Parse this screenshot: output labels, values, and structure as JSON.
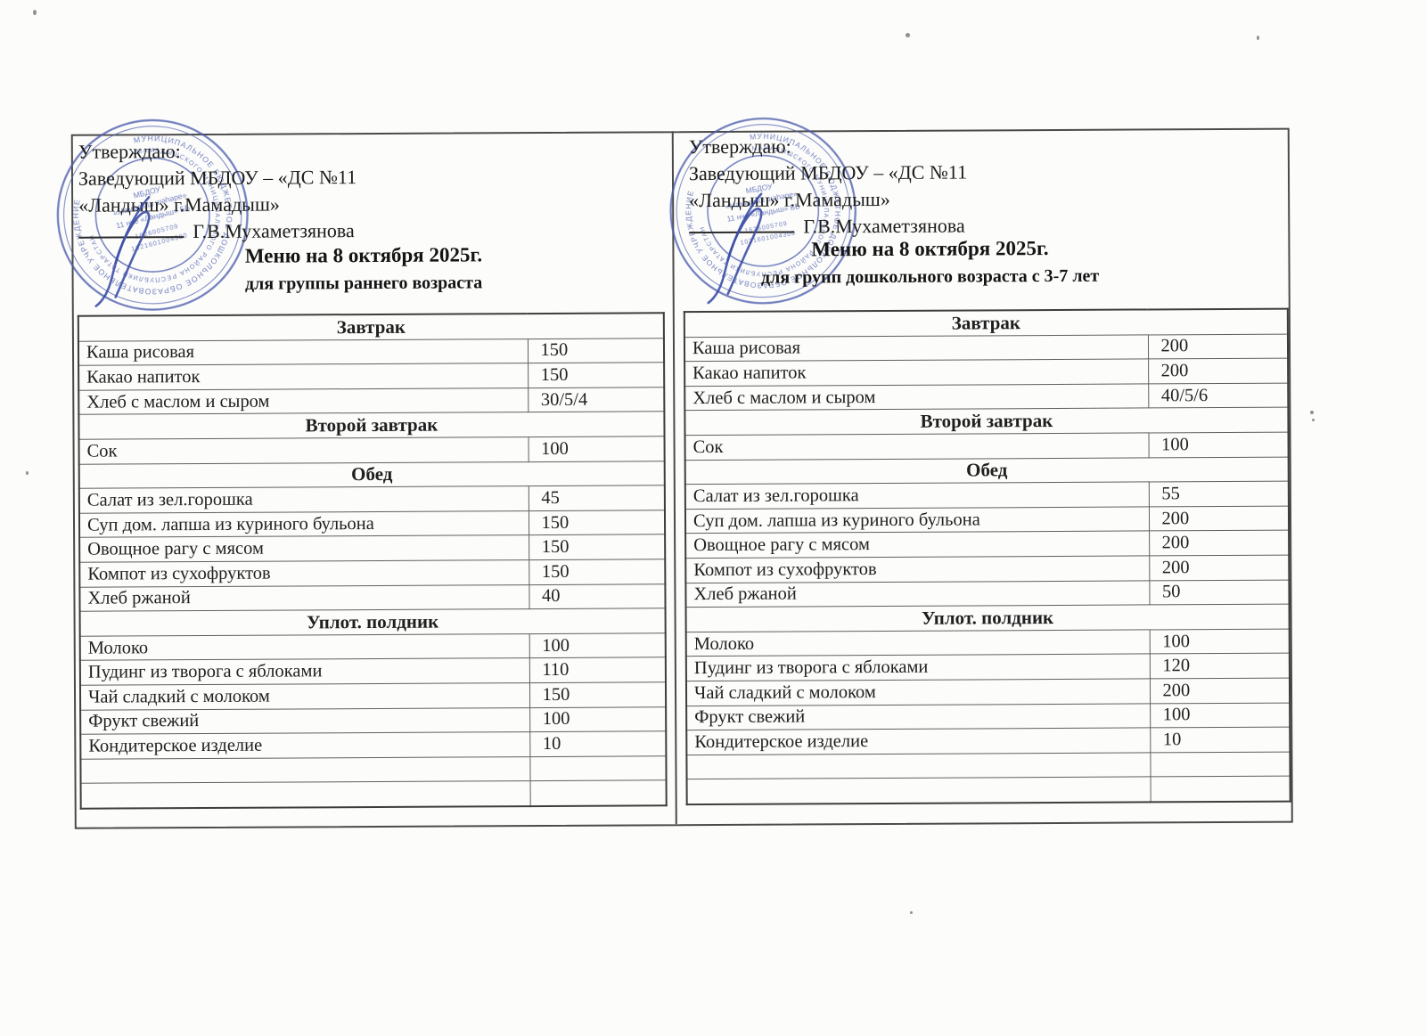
{
  "colors": {
    "stamp_blue": "#4d5ead",
    "signature_blue": "#3d4fa6",
    "ink": "#1e1e1e"
  },
  "approval": {
    "line1": "Утверждаю:",
    "line2": "Заведующий МБДОУ – «ДС №11",
    "line3": "«Ландыш» г.Мамадыш»",
    "signer": "Г.В.Мухаметзянова"
  },
  "left_menu": {
    "title": "Меню на 8 октября 2025г.",
    "subtitle": "для группы раннего возраста",
    "trailing_empty_rows": 2,
    "sections": [
      {
        "header": "Завтрак",
        "items": [
          {
            "dish": "Каша рисовая",
            "qty": "150"
          },
          {
            "dish": "Какао напиток",
            "qty": "150"
          },
          {
            "dish": "Хлеб с маслом и сыром",
            "qty": "30/5/4"
          }
        ]
      },
      {
        "header": "Второй завтрак",
        "items": [
          {
            "dish": "Сок",
            "qty": "100"
          }
        ]
      },
      {
        "header": "Обед",
        "items": [
          {
            "dish": "Салат из зел.горошка",
            "qty": "45"
          },
          {
            "dish": "Суп дом. лапша из куриного бульона",
            "qty": "150"
          },
          {
            "dish": "Овощное рагу с мясом",
            "qty": "150"
          },
          {
            "dish": "Компот из сухофруктов",
            "qty": "150"
          },
          {
            "dish": "Хлеб ржаной",
            "qty": "40"
          }
        ]
      },
      {
        "header": "Уплот. полдник",
        "items": [
          {
            "dish": "Молоко",
            "qty": "100"
          },
          {
            "dish": "Пудинг из творога с яблоками",
            "qty": "110"
          },
          {
            "dish": "Чай сладкий с молоком",
            "qty": "150"
          },
          {
            "dish": "Фрукт свежий",
            "qty": "100"
          },
          {
            "dish": "Кондитерское изделие",
            "qty": "10"
          }
        ]
      }
    ]
  },
  "right_menu": {
    "title": "Меню на 8 октября 2025г.",
    "subtitle": "для групп дошкольного возраста с 3-7 лет",
    "trailing_empty_rows": 2,
    "sections": [
      {
        "header": "Завтрак",
        "items": [
          {
            "dish": "Каша рисовая",
            "qty": "200"
          },
          {
            "dish": "Какао напиток",
            "qty": "200"
          },
          {
            "dish": "Хлеб с маслом и сыром",
            "qty": "40/5/6"
          }
        ]
      },
      {
        "header": "Второй завтрак",
        "items": [
          {
            "dish": "Сок",
            "qty": "100"
          }
        ]
      },
      {
        "header": "Обед",
        "items": [
          {
            "dish": "Салат из зел.горошка",
            "qty": "55"
          },
          {
            "dish": "Суп дом. лапша из куриного бульона",
            "qty": "200"
          },
          {
            "dish": "Овощное рагу с мясом",
            "qty": "200"
          },
          {
            "dish": "Компот из сухофруктов",
            "qty": "200"
          },
          {
            "dish": "Хлеб ржаной",
            "qty": "50"
          }
        ]
      },
      {
        "header": "Уплот. полдник",
        "items": [
          {
            "dish": "Молоко",
            "qty": "100"
          },
          {
            "dish": "Пудинг из творога с яблоками",
            "qty": "120"
          },
          {
            "dish": "Чай сладкий с молоком",
            "qty": "200"
          },
          {
            "dish": "Фрукт свежий",
            "qty": "100"
          },
          {
            "dish": "Кондитерское изделие",
            "qty": "10"
          }
        ]
      }
    ]
  },
  "stamp": {
    "ring_text1": "МУНИЦИПАЛЬНОЕ БЮДЖЕТНОЕ ДОШКОЛЬНОЕ ОБРАЗОВАТЕЛЬНОЕ УЧРЕЖДЕНИЕ",
    "ring_text2": "МАМАДЫШСКОГО МУНИЦИПАЛЬНОГО РАЙОНА РЕСПУБЛИКИ ТАТАРСТАН",
    "center_line1": "МБДОУ",
    "center_line2": "«Мамадыш шәһәре»",
    "center_line3": "11 нче «Ландыш» ББ",
    "inn": "1626005709",
    "ogrn": "1021601004300"
  }
}
